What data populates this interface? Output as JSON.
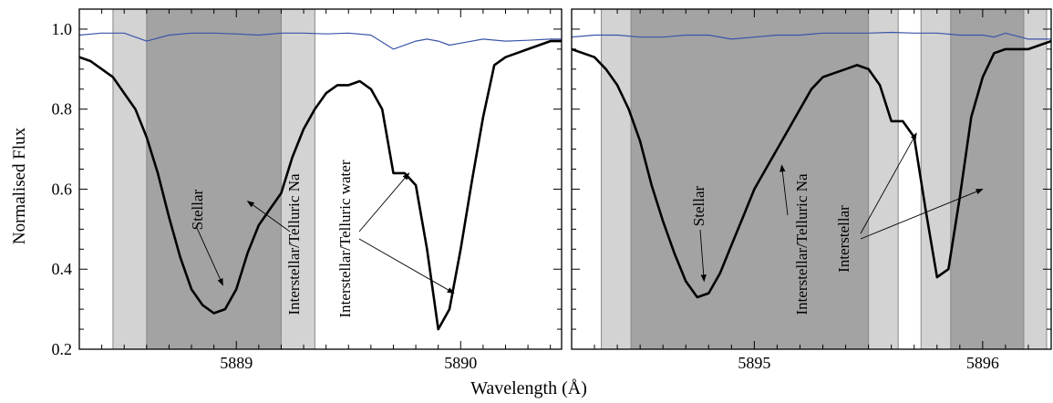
{
  "chart_data": {
    "type": "line",
    "ylabel": "Normalised Flux",
    "xlabel": "Wavelength (Å)",
    "ylim": [
      0.2,
      1.05
    ],
    "yticks": [
      "0.2",
      "0.4",
      "0.6",
      "0.8",
      "1.0"
    ],
    "colors": {
      "profile": "#000000",
      "telluric": "#3a55a8",
      "band_light": "#d3d3d3",
      "band_dark": "#a3a3a3"
    },
    "panels": [
      {
        "xlim": [
          5888.3,
          5890.45
        ],
        "xticks": [
          5889,
          5890
        ],
        "xtick_labels": [
          "5889",
          "5890"
        ],
        "bands": [
          {
            "from": 5888.45,
            "to": 5889.35,
            "shade": "light"
          },
          {
            "from": 5888.6,
            "to": 5889.2,
            "shade": "dark"
          }
        ],
        "series": [
          {
            "values_x": [
              5888.3,
              5888.35,
              5888.4,
              5888.45,
              5888.5,
              5888.55,
              5888.6,
              5888.65,
              5888.7,
              5888.75,
              5888.8,
              5888.85,
              5888.9,
              5888.95,
              5889.0,
              5889.05,
              5889.1,
              5889.15,
              5889.2,
              5889.25,
              5889.3,
              5889.35,
              5889.4,
              5889.45,
              5889.5,
              5889.55,
              5889.6,
              5889.65,
              5889.7,
              5889.75,
              5889.8,
              5889.85,
              5889.9,
              5889.95,
              5890.0,
              5890.05,
              5890.1,
              5890.15,
              5890.2,
              5890.25,
              5890.3,
              5890.35,
              5890.4,
              5890.45
            ],
            "values_y": [
              0.93,
              0.92,
              0.9,
              0.88,
              0.84,
              0.8,
              0.73,
              0.64,
              0.53,
              0.43,
              0.35,
              0.31,
              0.29,
              0.3,
              0.35,
              0.44,
              0.51,
              0.55,
              0.59,
              0.68,
              0.75,
              0.8,
              0.84,
              0.86,
              0.86,
              0.87,
              0.85,
              0.8,
              0.64,
              0.64,
              0.61,
              0.45,
              0.25,
              0.3,
              0.45,
              0.62,
              0.78,
              0.91,
              0.93,
              0.94,
              0.95,
              0.96,
              0.97,
              0.97
            ]
          },
          {
            "values_x": [
              5888.3,
              5888.4,
              5888.5,
              5888.6,
              5888.7,
              5888.8,
              5888.9,
              5889.0,
              5889.1,
              5889.2,
              5889.3,
              5889.4,
              5889.5,
              5889.6,
              5889.7,
              5889.8,
              5889.85,
              5889.9,
              5889.95,
              5890.0,
              5890.1,
              5890.2,
              5890.3,
              5890.4,
              5890.45
            ],
            "values_y": [
              0.985,
              0.99,
              0.99,
              0.97,
              0.985,
              0.99,
              0.99,
              0.988,
              0.985,
              0.99,
              0.99,
              0.988,
              0.99,
              0.985,
              0.95,
              0.97,
              0.975,
              0.97,
              0.96,
              0.965,
              0.975,
              0.97,
              0.972,
              0.975,
              0.975
            ]
          }
        ],
        "annotations": [
          {
            "text": "Stellar",
            "x": 5888.94,
            "y": 0.6,
            "arrow_to": [
              [
                5888.94,
                0.36
              ]
            ]
          },
          {
            "text": "Interstellar/Telluric Na",
            "x": 5889.28,
            "y": 0.38,
            "arrow_to": [
              [
                5889.05,
                0.57
              ]
            ]
          },
          {
            "text": "Interstellar/Telluric water",
            "x": 5889.47,
            "y": 0.41,
            "arrow_to": [
              [
                5889.77,
                0.64
              ],
              [
                5889.97,
                0.34
              ]
            ]
          }
        ]
      },
      {
        "xlim": [
          5894.2,
          5896.3
        ],
        "xticks": [
          5895,
          5896
        ],
        "xtick_labels": [
          "5895",
          "5896"
        ],
        "bands": [
          {
            "from": 5894.33,
            "to": 5895.63,
            "shade": "light"
          },
          {
            "from": 5894.46,
            "to": 5895.5,
            "shade": "dark"
          },
          {
            "from": 5895.73,
            "to": 5896.28,
            "shade": "light"
          },
          {
            "from": 5895.86,
            "to": 5896.18,
            "shade": "dark"
          }
        ],
        "series": [
          {
            "values_x": [
              5894.2,
              5894.25,
              5894.3,
              5894.35,
              5894.4,
              5894.45,
              5894.5,
              5894.55,
              5894.6,
              5894.65,
              5894.7,
              5894.75,
              5894.8,
              5894.85,
              5894.9,
              5894.95,
              5895.0,
              5895.05,
              5895.1,
              5895.15,
              5895.2,
              5895.25,
              5895.3,
              5895.35,
              5895.4,
              5895.45,
              5895.5,
              5895.55,
              5895.6,
              5895.65,
              5895.7,
              5895.75,
              5895.8,
              5895.85,
              5895.9,
              5895.95,
              5896.0,
              5896.05,
              5896.1,
              5896.15,
              5896.2,
              5896.25,
              5896.3
            ],
            "values_y": [
              0.95,
              0.94,
              0.93,
              0.9,
              0.86,
              0.8,
              0.72,
              0.61,
              0.52,
              0.44,
              0.37,
              0.33,
              0.34,
              0.39,
              0.46,
              0.53,
              0.6,
              0.65,
              0.7,
              0.75,
              0.8,
              0.85,
              0.88,
              0.89,
              0.9,
              0.91,
              0.9,
              0.86,
              0.77,
              0.77,
              0.73,
              0.55,
              0.38,
              0.4,
              0.58,
              0.78,
              0.88,
              0.94,
              0.95,
              0.95,
              0.95,
              0.96,
              0.97
            ]
          },
          {
            "values_x": [
              5894.2,
              5894.3,
              5894.4,
              5894.5,
              5894.6,
              5894.7,
              5894.8,
              5894.9,
              5895.0,
              5895.1,
              5895.2,
              5895.3,
              5895.4,
              5895.5,
              5895.6,
              5895.7,
              5895.8,
              5895.9,
              5896.0,
              5896.05,
              5896.1,
              5896.2,
              5896.3
            ],
            "values_y": [
              0.98,
              0.985,
              0.985,
              0.98,
              0.98,
              0.985,
              0.985,
              0.975,
              0.98,
              0.985,
              0.985,
              0.99,
              0.99,
              0.99,
              0.992,
              0.99,
              0.99,
              0.985,
              0.985,
              0.98,
              0.99,
              0.975,
              0.975
            ]
          }
        ],
        "annotations": [
          {
            "text": "Stellar",
            "x": 5894.78,
            "y": 0.64,
            "arrow_to": [
              [
                5894.78,
                0.37
              ]
            ]
          },
          {
            "text": "Interstellar/Telluric Na",
            "x": 5895.52,
            "y": 0.38,
            "arrow_to": [
              [
                5895.12,
                0.66
              ]
            ]
          },
          {
            "text": "Interstellar",
            "x": 5895.64,
            "y": 0.43,
            "arrow_to": [
              [
                5895.71,
                0.74
              ],
              [
                5896.0,
                0.6
              ]
            ]
          }
        ]
      }
    ]
  }
}
